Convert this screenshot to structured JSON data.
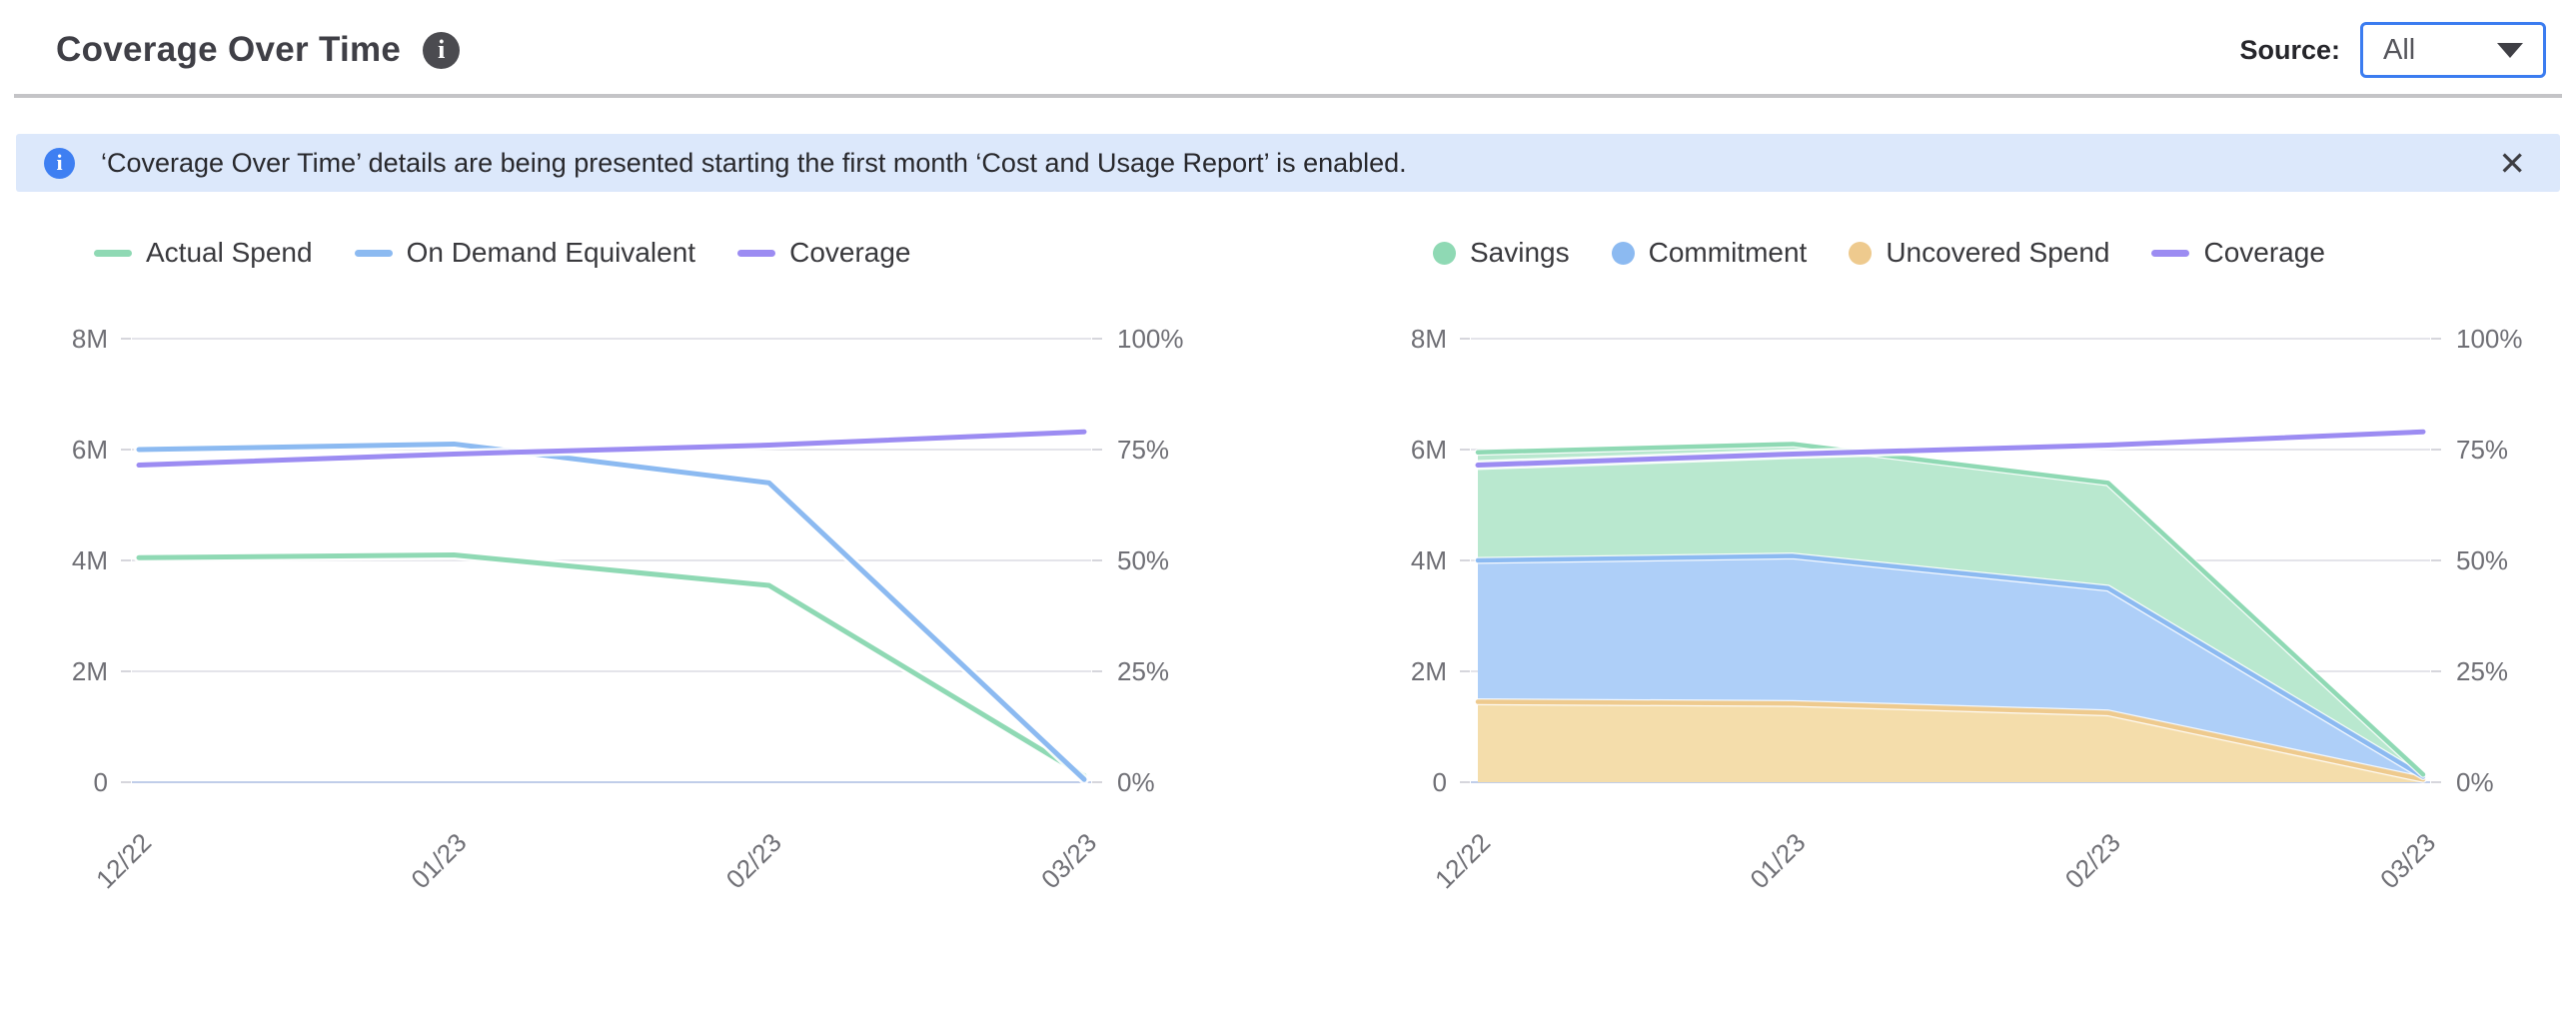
{
  "header": {
    "title": "Coverage Over Time",
    "info_icon": "i",
    "source": {
      "label": "Source:",
      "value": "All"
    }
  },
  "banner": {
    "icon": "i",
    "text": "‘Coverage Over Time’ details are being presented starting the first month ‘Cost and Usage Report’ is enabled.",
    "close_icon": "✕"
  },
  "colors": {
    "green_line": "#8fd9b4",
    "green_fill": "#b9e8cf",
    "blue_line": "#8cbaf1",
    "blue_fill": "#aecff8",
    "tan_line": "#eeca8e",
    "tan_fill": "#f4ddab",
    "purple_line": "#9c8cf2",
    "grid": "#e4e4ea",
    "axis_bottom": "#c0cde9",
    "tick": "#d6d6dc",
    "accent_blue": "#3b7cf0"
  },
  "chart_data": [
    {
      "type": "line",
      "x": [
        "12/22",
        "01/23",
        "02/23",
        "03/23"
      ],
      "left_axis": {
        "labels": [
          "8M",
          "6M",
          "4M",
          "2M",
          "0"
        ],
        "max": 8
      },
      "right_axis": {
        "labels": [
          "100%",
          "75%",
          "50%",
          "25%",
          "0%"
        ],
        "max": 100
      },
      "legend": [
        {
          "label": "Actual Spend",
          "swatch": "line",
          "color": "#8fd9b4"
        },
        {
          "label": "On Demand Equivalent",
          "swatch": "line",
          "color": "#8cbaf1"
        },
        {
          "label": "Coverage",
          "swatch": "line",
          "color": "#9c8cf2"
        }
      ],
      "series": [
        {
          "name": "Actual Spend",
          "axis": "left",
          "style": "line",
          "color": "#8fd9b4",
          "values": [
            4.05,
            4.1,
            3.55,
            0.12
          ]
        },
        {
          "name": "On Demand Equivalent",
          "axis": "left",
          "style": "line",
          "color": "#8cbaf1",
          "values": [
            6.0,
            6.1,
            5.4,
            0.05
          ]
        },
        {
          "name": "Coverage",
          "axis": "right",
          "style": "line",
          "color": "#9c8cf2",
          "values": [
            71.5,
            74,
            76,
            79
          ]
        }
      ]
    },
    {
      "type": "area-stacked",
      "x": [
        "12/22",
        "01/23",
        "02/23",
        "03/23"
      ],
      "left_axis": {
        "labels": [
          "8M",
          "6M",
          "4M",
          "2M",
          "0"
        ],
        "max": 8
      },
      "right_axis": {
        "labels": [
          "100%",
          "75%",
          "50%",
          "25%",
          "0%"
        ],
        "max": 100
      },
      "legend": [
        {
          "label": "Savings",
          "swatch": "circle",
          "color": "#8fd9b4"
        },
        {
          "label": "Commitment",
          "swatch": "circle",
          "color": "#8cbaf1"
        },
        {
          "label": "Uncovered Spend",
          "swatch": "circle",
          "color": "#eeca8e"
        },
        {
          "label": "Coverage",
          "swatch": "line",
          "color": "#9c8cf2"
        }
      ],
      "series": [
        {
          "name": "Uncovered Spend",
          "axis": "left",
          "style": "area",
          "color": "#eeca8e",
          "fill": "#f4ddab",
          "values": [
            1.45,
            1.42,
            1.25,
            0.05
          ]
        },
        {
          "name": "Commitment",
          "axis": "left",
          "style": "area",
          "color": "#8cbaf1",
          "fill": "#aecff8",
          "values": [
            2.55,
            2.66,
            2.25,
            0.05
          ]
        },
        {
          "name": "Savings",
          "axis": "left",
          "style": "area",
          "color": "#8fd9b4",
          "fill": "#b9e8cf",
          "values": [
            1.95,
            2.02,
            1.9,
            0.04
          ]
        },
        {
          "name": "Coverage",
          "axis": "right",
          "style": "line",
          "color": "#9c8cf2",
          "values": [
            71.5,
            74,
            76,
            79
          ]
        }
      ]
    }
  ]
}
